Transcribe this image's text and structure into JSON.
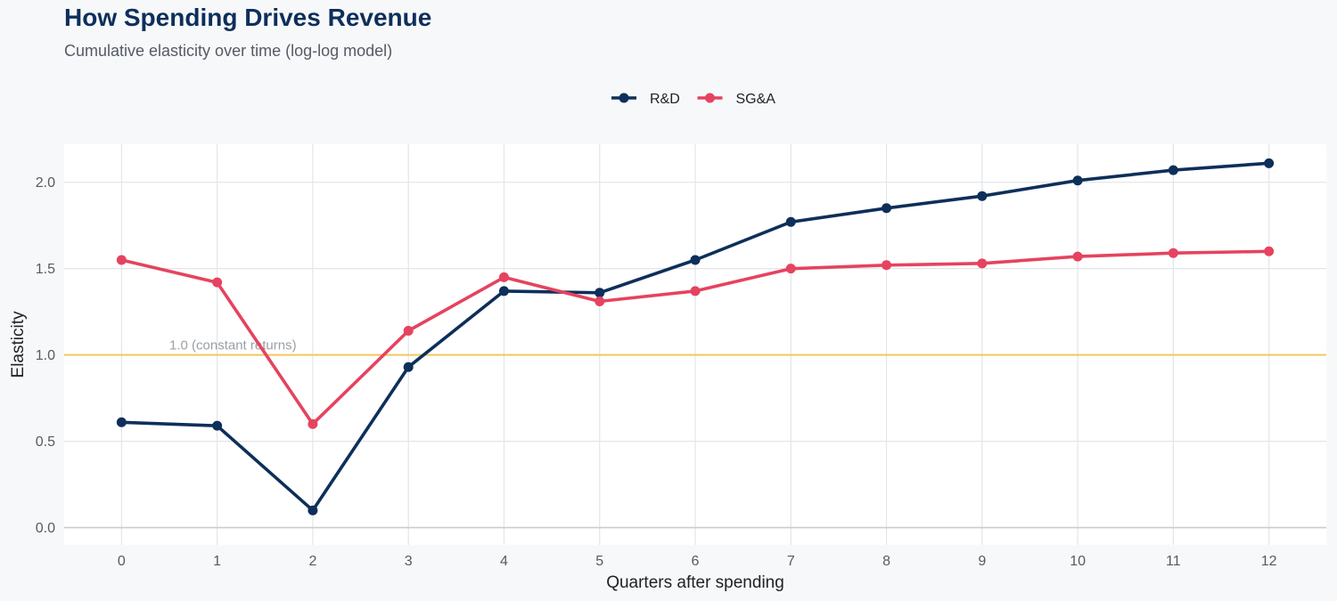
{
  "title": "How Spending Drives Revenue",
  "subtitle": "Cumulative elasticity over time (log-log model)",
  "chart_data": {
    "type": "line",
    "title": "How Spending Drives Revenue",
    "subtitle": "Cumulative elasticity over time (log-log model)",
    "xlabel": "Quarters after spending",
    "ylabel": "Elasticity",
    "x": [
      0,
      1,
      2,
      3,
      4,
      5,
      6,
      7,
      8,
      9,
      10,
      11,
      12
    ],
    "xlim": [
      -0.6,
      12.6
    ],
    "ylim": [
      -0.1,
      2.22
    ],
    "yticks": [
      0.0,
      0.5,
      1.0,
      1.5,
      2.0
    ],
    "ytick_labels": [
      "0.0",
      "0.5",
      "1.0",
      "1.5",
      "2.0"
    ],
    "xtick_labels": [
      "0",
      "1",
      "2",
      "3",
      "4",
      "5",
      "6",
      "7",
      "8",
      "9",
      "10",
      "11",
      "12"
    ],
    "grid": true,
    "legend_position": "top-center",
    "series": [
      {
        "name": "R&D",
        "color": "#0d2f5a",
        "values": [
          0.61,
          0.59,
          0.1,
          0.93,
          1.37,
          1.36,
          1.55,
          1.77,
          1.85,
          1.92,
          2.01,
          2.07,
          2.11
        ]
      },
      {
        "name": "SG&A",
        "color": "#e5435f",
        "values": [
          1.55,
          1.42,
          0.6,
          1.14,
          1.45,
          1.31,
          1.37,
          1.5,
          1.52,
          1.53,
          1.57,
          1.59,
          1.6
        ]
      }
    ],
    "reference_line": {
      "y": 1.0,
      "label": "1.0 (constant returns)",
      "color": "#f2c75c"
    }
  }
}
